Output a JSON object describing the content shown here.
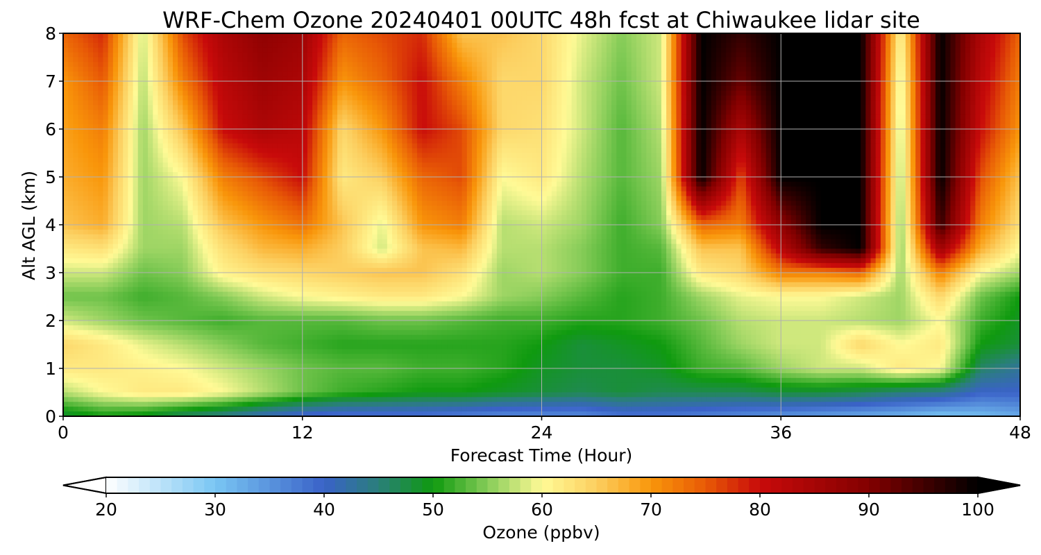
{
  "chart_data": {
    "type": "heatmap",
    "title": "WRF-Chem Ozone  20240401 00UTC 48h fcst at Chiwaukee lidar site",
    "xlabel": "Forecast Time (Hour)",
    "ylabel": "Alt AGL (km)",
    "xlim": [
      0,
      48
    ],
    "ylim": [
      0,
      8
    ],
    "xticks": [
      0,
      12,
      24,
      36,
      48
    ],
    "yticks": [
      0,
      1,
      2,
      3,
      4,
      5,
      6,
      7,
      8
    ],
    "grid": true,
    "colorbar": {
      "label": "Ozone  (ppbv)",
      "range": [
        20,
        100
      ],
      "ticks": [
        20,
        30,
        40,
        50,
        60,
        70,
        80,
        90,
        100
      ],
      "extend": "both",
      "orientation": "horizontal",
      "placement": "bottom",
      "colors": [
        {
          "value": 20,
          "color": "#ffffff"
        },
        {
          "value": 30,
          "color": "#79c6f3"
        },
        {
          "value": 40,
          "color": "#3a62c8"
        },
        {
          "value": 45,
          "color": "#2a7f7a"
        },
        {
          "value": 50,
          "color": "#0f9a0f"
        },
        {
          "value": 55,
          "color": "#86cc58"
        },
        {
          "value": 60,
          "color": "#fffa96"
        },
        {
          "value": 65,
          "color": "#fccf60"
        },
        {
          "value": 70,
          "color": "#f9960a"
        },
        {
          "value": 75,
          "color": "#e85a06"
        },
        {
          "value": 80,
          "color": "#c80a0a"
        },
        {
          "value": 90,
          "color": "#820000"
        },
        {
          "value": 100,
          "color": "#000000"
        }
      ]
    },
    "x_hours": [
      0,
      2,
      4,
      6,
      8,
      10,
      12,
      14,
      16,
      18,
      20,
      22,
      24,
      26,
      28,
      30,
      32,
      34,
      36,
      38,
      40,
      42,
      44,
      46,
      48
    ],
    "altitudes_km": [
      0,
      0.5,
      1,
      1.5,
      2,
      2.5,
      3,
      3.5,
      4,
      5,
      6,
      7,
      8
    ],
    "ozone_ppbv": [
      [
        48,
        50,
        49,
        46,
        44,
        41,
        39,
        38,
        38,
        38,
        37,
        36,
        36,
        36,
        38,
        38,
        37,
        36,
        35,
        34,
        33,
        32,
        30,
        31,
        33
      ],
      [
        57,
        60,
        62,
        62,
        60,
        57,
        54,
        52,
        51,
        50,
        50,
        49,
        48,
        47,
        48,
        47,
        47,
        47,
        48,
        48,
        47,
        45,
        44,
        40,
        40
      ],
      [
        62,
        62,
        61,
        60,
        58,
        56,
        54,
        53,
        53,
        52,
        52,
        51,
        49,
        48,
        48,
        49,
        52,
        53,
        56,
        58,
        58,
        62,
        60,
        46,
        43
      ],
      [
        64,
        62,
        59,
        57,
        55,
        53,
        52,
        51,
        51,
        51,
        51,
        51,
        50,
        48,
        49,
        50,
        53,
        56,
        58,
        58,
        64,
        60,
        62,
        50,
        48
      ],
      [
        58,
        56,
        54,
        53,
        52,
        53,
        53,
        53,
        54,
        54,
        53,
        52,
        52,
        51,
        51,
        52,
        54,
        57,
        58,
        58,
        57,
        56,
        60,
        52,
        49
      ],
      [
        54,
        54,
        52,
        53,
        55,
        58,
        60,
        61,
        62,
        62,
        60,
        56,
        55,
        53,
        51,
        52,
        56,
        59,
        60,
        60,
        58,
        56,
        64,
        54,
        50
      ],
      [
        58,
        58,
        54,
        55,
        61,
        63,
        64,
        65,
        66,
        66,
        63,
        56,
        57,
        55,
        52,
        52,
        62,
        64,
        72,
        72,
        74,
        56,
        72,
        60,
        56
      ],
      [
        62,
        63,
        56,
        56,
        63,
        67,
        68,
        65,
        58,
        66,
        67,
        57,
        57,
        55,
        52,
        53,
        66,
        66,
        82,
        96,
        100,
        55,
        86,
        68,
        60
      ],
      [
        66,
        68,
        56,
        57,
        66,
        70,
        73,
        66,
        59,
        70,
        72,
        57,
        58,
        56,
        52,
        55,
        74,
        72,
        88,
        100,
        100,
        55,
        96,
        72,
        63
      ],
      [
        68,
        70,
        56,
        60,
        72,
        76,
        80,
        62,
        65,
        74,
        76,
        60,
        62,
        57,
        53,
        56,
        100,
        76,
        100,
        100,
        100,
        56,
        100,
        76,
        66
      ],
      [
        69,
        72,
        56,
        66,
        80,
        84,
        82,
        64,
        70,
        80,
        76,
        64,
        63,
        58,
        53,
        57,
        100,
        84,
        100,
        100,
        100,
        57,
        100,
        80,
        70
      ],
      [
        70,
        75,
        57,
        72,
        82,
        86,
        84,
        70,
        74,
        80,
        72,
        64,
        64,
        58,
        54,
        58,
        100,
        92,
        100,
        100,
        100,
        58,
        100,
        82,
        72
      ],
      [
        74,
        78,
        58,
        76,
        84,
        88,
        86,
        74,
        76,
        78,
        66,
        66,
        64,
        59,
        55,
        58,
        100,
        96,
        100,
        100,
        100,
        60,
        100,
        84,
        74
      ]
    ]
  }
}
